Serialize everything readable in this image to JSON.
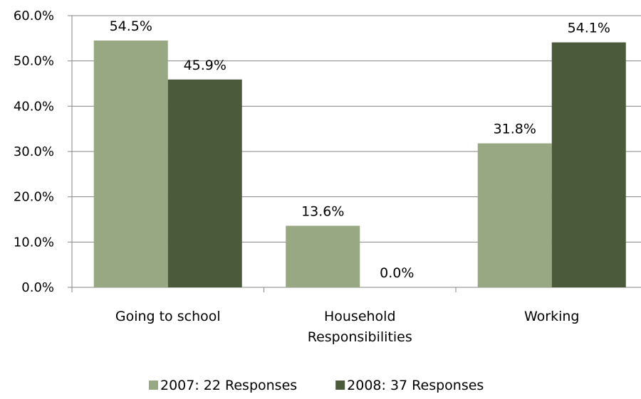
{
  "chart_data": {
    "type": "bar",
    "categories": [
      [
        "Going to school"
      ],
      [
        "Household",
        "Responsibilities"
      ],
      [
        "Working"
      ]
    ],
    "series": [
      {
        "name": "2007: 22 Responses",
        "color": "#98a883",
        "values": [
          54.5,
          13.6,
          31.8
        ],
        "labels": [
          "54.5%",
          "13.6%",
          "31.8%"
        ]
      },
      {
        "name": "2008: 37 Responses",
        "color": "#4b5a3b",
        "values": [
          45.9,
          0.0,
          54.1
        ],
        "labels": [
          "45.9%",
          "0.0%",
          "54.1%"
        ]
      }
    ],
    "ylim": [
      0,
      60
    ],
    "y_ticks": [
      "0.0%",
      "10.0%",
      "20.0%",
      "30.0%",
      "40.0%",
      "50.0%",
      "60.0%"
    ],
    "y_tick_values": [
      0,
      10,
      20,
      30,
      40,
      50,
      60
    ],
    "grid": true,
    "grid_color": "#868686",
    "legend_position": "bottom"
  }
}
